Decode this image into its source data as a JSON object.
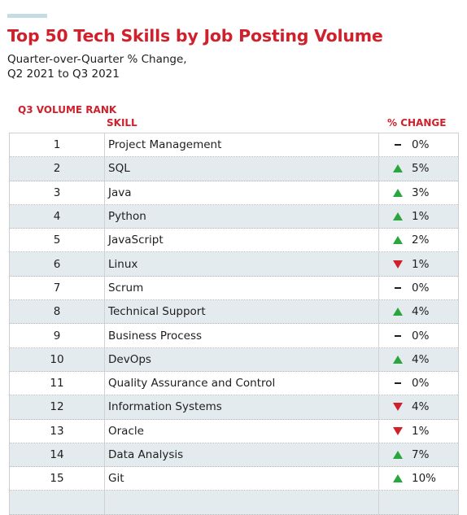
{
  "header": {
    "title": "Top 50 Tech Skills by Job Posting Volume",
    "subtitle_line1": "Quarter-over-Quarter % Change,",
    "subtitle_line2": "Q2 2021 to Q3 2021"
  },
  "columns": {
    "rank": "Q3 VOLUME RANK",
    "skill": "SKILL",
    "change": "% CHANGE"
  },
  "colors": {
    "title": "#d0202b",
    "up": "#2aa63f",
    "down": "#d0202b",
    "row_alt": "#e3ebee"
  },
  "rows": [
    {
      "rank": "1",
      "skill": "Project Management",
      "direction": "flat",
      "change": "0%"
    },
    {
      "rank": "2",
      "skill": "SQL",
      "direction": "up",
      "change": "5%"
    },
    {
      "rank": "3",
      "skill": "Java",
      "direction": "up",
      "change": "3%"
    },
    {
      "rank": "4",
      "skill": "Python",
      "direction": "up",
      "change": "1%"
    },
    {
      "rank": "5",
      "skill": "JavaScript",
      "direction": "up",
      "change": "2%"
    },
    {
      "rank": "6",
      "skill": "Linux",
      "direction": "down",
      "change": "1%"
    },
    {
      "rank": "7",
      "skill": "Scrum",
      "direction": "flat",
      "change": "0%"
    },
    {
      "rank": "8",
      "skill": "Technical Support",
      "direction": "up",
      "change": "4%"
    },
    {
      "rank": "9",
      "skill": "Business Process",
      "direction": "flat",
      "change": "0%"
    },
    {
      "rank": "10",
      "skill": "DevOps",
      "direction": "up",
      "change": "4%"
    },
    {
      "rank": "11",
      "skill": "Quality Assurance and Control",
      "direction": "flat",
      "change": "0%"
    },
    {
      "rank": "12",
      "skill": "Information Systems",
      "direction": "down",
      "change": "4%"
    },
    {
      "rank": "13",
      "skill": "Oracle",
      "direction": "down",
      "change": "1%"
    },
    {
      "rank": "14",
      "skill": "Data Analysis",
      "direction": "up",
      "change": "7%"
    },
    {
      "rank": "15",
      "skill": "Git",
      "direction": "up",
      "change": "10%"
    },
    {
      "rank": "",
      "skill": "",
      "direction": "",
      "change": ""
    }
  ]
}
